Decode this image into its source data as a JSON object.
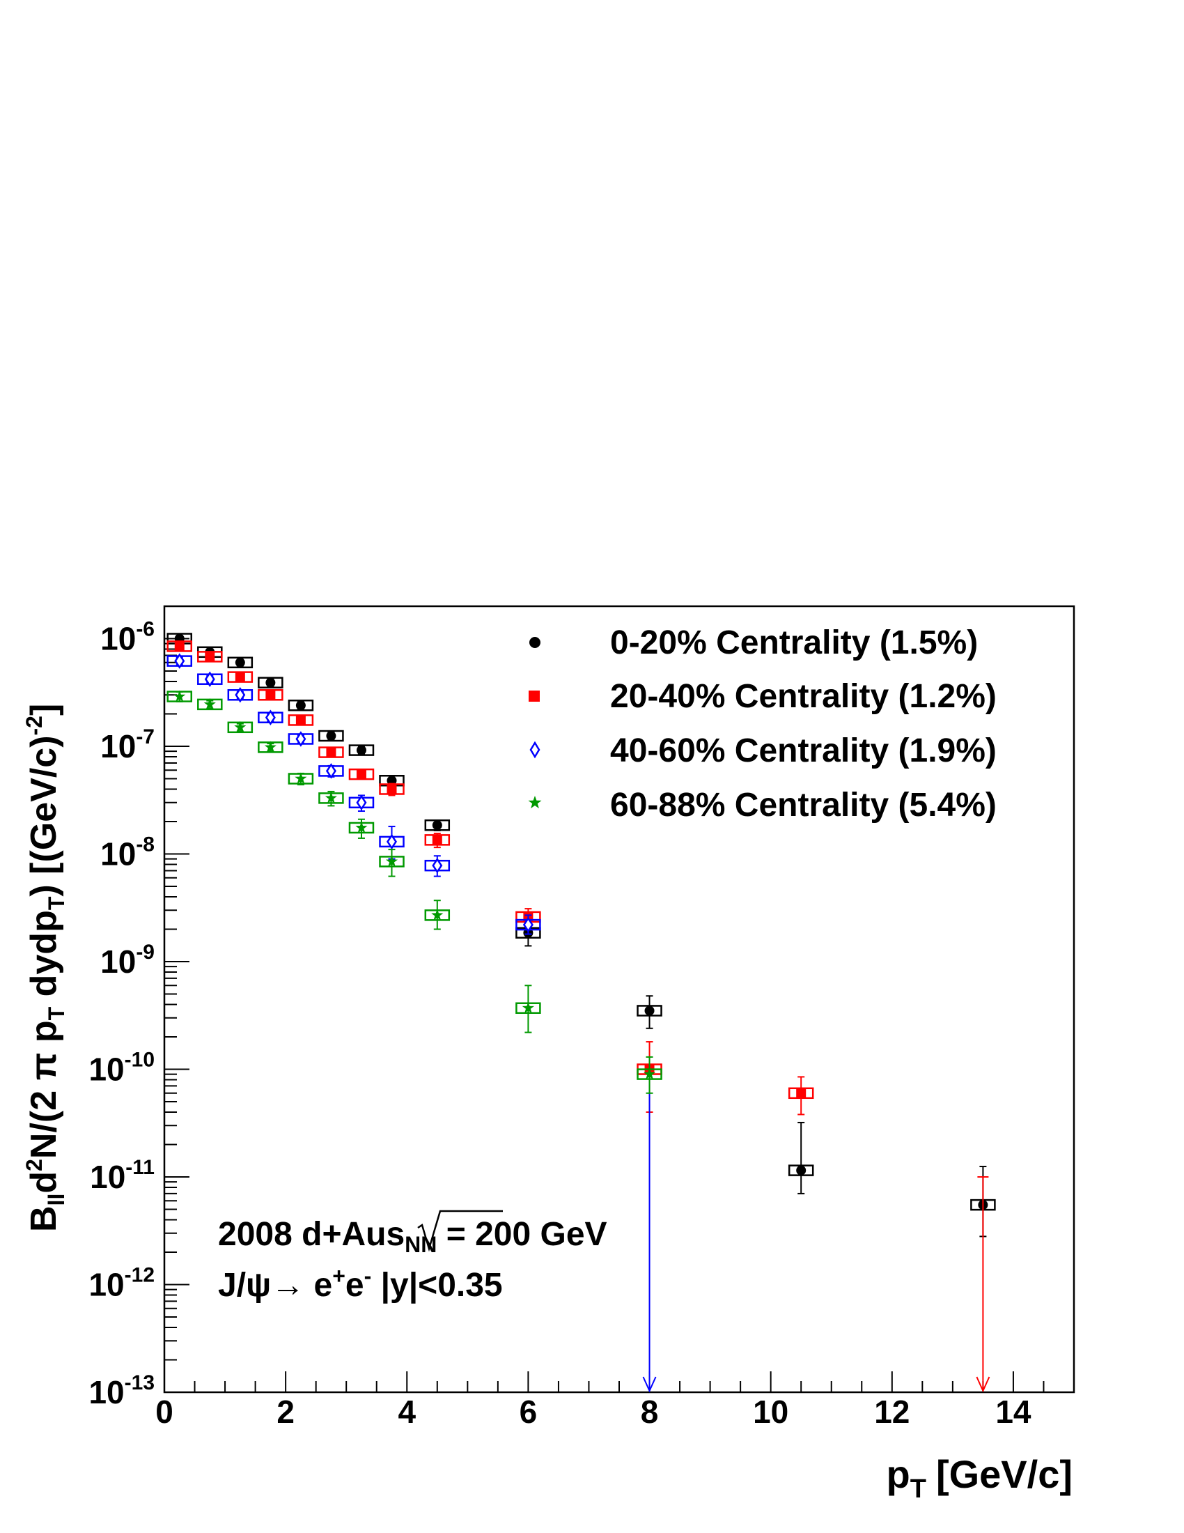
{
  "chart_data": {
    "type": "scatter",
    "title": "",
    "xlabel": "p",
    "xlabel_sub": "T",
    "xlabel_units": "[GeV/c]",
    "ylabel_text": "Bₗₗd²N/(2 π pₜ dydpₜ) [(GeV/c)⁻²]",
    "ylabel_parts": {
      "B": "B",
      "B_sub": "ll",
      "d": "d",
      "d_sup": "2",
      "N_open": "N/(2 π p",
      "pt_sub": "T",
      "mid": " dydp",
      "pt_sub2": "T",
      "close": ") [(GeV/c)",
      "exp": "-2",
      "end": "]"
    },
    "xlim": [
      0,
      15
    ],
    "ylim": [
      1e-13,
      2e-06
    ],
    "yscale": "log",
    "x_ticks": [
      "0",
      "2",
      "4",
      "6",
      "8",
      "10",
      "12",
      "14"
    ],
    "y_ticks": [
      {
        "base": "10",
        "exp": "-6"
      },
      {
        "base": "10",
        "exp": "-7"
      },
      {
        "base": "10",
        "exp": "-8"
      },
      {
        "base": "10",
        "exp": "-9"
      },
      {
        "base": "10",
        "exp": "-10"
      },
      {
        "base": "10",
        "exp": "-11"
      },
      {
        "base": "10",
        "exp": "-12"
      },
      {
        "base": "10",
        "exp": "-13"
      }
    ],
    "legend_position": "top-right",
    "annotation": {
      "line1_a": "2008 d+Au",
      "line1_sqrt_s": "s",
      "line1_sqrt_sub": "NN",
      "line1_b": " = 200 GeV",
      "line2_a": "J/ψ→ e",
      "line2_plus": "+",
      "line2_e": "e",
      "line2_minus": "-",
      "line2_b": "  |y|<0.35"
    },
    "series": [
      {
        "name": "0-20% Centrality (1.5%)",
        "color": "#000000",
        "marker": "circle",
        "points": [
          {
            "x": 0.25,
            "y": 1e-06,
            "lo": 9.3e-07,
            "hi": 1.07e-06
          },
          {
            "x": 0.75,
            "y": 7.5e-07,
            "lo": 7e-07,
            "hi": 8e-07
          },
          {
            "x": 1.25,
            "y": 6e-07,
            "lo": 5.6e-07,
            "hi": 6.4e-07
          },
          {
            "x": 1.75,
            "y": 3.9e-07,
            "lo": 3.6e-07,
            "hi": 4.2e-07
          },
          {
            "x": 2.25,
            "y": 2.4e-07,
            "lo": 2.2e-07,
            "hi": 2.6e-07
          },
          {
            "x": 2.75,
            "y": 1.25e-07,
            "lo": 1.15e-07,
            "hi": 1.35e-07
          },
          {
            "x": 3.25,
            "y": 9.2e-08,
            "lo": 8.5e-08,
            "hi": 9.9e-08
          },
          {
            "x": 3.75,
            "y": 4.8e-08,
            "lo": 4.3e-08,
            "hi": 5.3e-08
          },
          {
            "x": 4.5,
            "y": 1.85e-08,
            "lo": 1.65e-08,
            "hi": 2.05e-08
          },
          {
            "x": 6.0,
            "y": 1.85e-09,
            "lo": 1.4e-09,
            "hi": 2.4e-09
          },
          {
            "x": 8.0,
            "y": 3.5e-10,
            "lo": 2.4e-10,
            "hi": 4.8e-10
          },
          {
            "x": 10.5,
            "y": 1.15e-11,
            "lo": 7e-12,
            "hi": 3.2e-11
          },
          {
            "x": 13.5,
            "y": 5.5e-12,
            "lo": 2.8e-12,
            "hi": 1.25e-11
          }
        ]
      },
      {
        "name": "20-40% Centrality (1.2%)",
        "color": "#ff0000",
        "marker": "square",
        "points": [
          {
            "x": 0.25,
            "y": 8.5e-07,
            "lo": 7.9e-07,
            "hi": 9.1e-07
          },
          {
            "x": 0.75,
            "y": 6.8e-07,
            "lo": 6.3e-07,
            "hi": 7.3e-07
          },
          {
            "x": 1.25,
            "y": 4.4e-07,
            "lo": 4.1e-07,
            "hi": 4.7e-07
          },
          {
            "x": 1.75,
            "y": 3e-07,
            "lo": 2.8e-07,
            "hi": 3.2e-07
          },
          {
            "x": 2.25,
            "y": 1.75e-07,
            "lo": 1.62e-07,
            "hi": 1.88e-07
          },
          {
            "x": 2.75,
            "y": 8.8e-08,
            "lo": 8.1e-08,
            "hi": 9.5e-08
          },
          {
            "x": 3.25,
            "y": 5.5e-08,
            "lo": 5e-08,
            "hi": 6e-08
          },
          {
            "x": 3.75,
            "y": 4e-08,
            "lo": 3.5e-08,
            "hi": 4.5e-08
          },
          {
            "x": 4.5,
            "y": 1.35e-08,
            "lo": 1.15e-08,
            "hi": 1.55e-08
          },
          {
            "x": 6.0,
            "y": 2.6e-09,
            "lo": 2.1e-09,
            "hi": 3.1e-09
          },
          {
            "x": 8.0,
            "y": 1e-10,
            "lo": 4e-11,
            "hi": 1.8e-10
          },
          {
            "x": 10.5,
            "y": 6e-11,
            "lo": 3.8e-11,
            "hi": 8.5e-11
          },
          {
            "x": 13.5,
            "y": 1e-11,
            "arrow": true
          }
        ]
      },
      {
        "name": "40-60% Centrality (1.9%)",
        "color": "#0000ff",
        "marker": "open-diamond",
        "points": [
          {
            "x": 0.25,
            "y": 6.2e-07,
            "lo": 5.7e-07,
            "hi": 6.7e-07
          },
          {
            "x": 0.75,
            "y": 4.2e-07,
            "lo": 3.9e-07,
            "hi": 4.5e-07
          },
          {
            "x": 1.25,
            "y": 3e-07,
            "lo": 2.8e-07,
            "hi": 3.2e-07
          },
          {
            "x": 1.75,
            "y": 1.85e-07,
            "lo": 1.7e-07,
            "hi": 2e-07
          },
          {
            "x": 2.25,
            "y": 1.17e-07,
            "lo": 1.07e-07,
            "hi": 1.27e-07
          },
          {
            "x": 2.75,
            "y": 5.9e-08,
            "lo": 5.2e-08,
            "hi": 6.6e-08
          },
          {
            "x": 3.25,
            "y": 3e-08,
            "lo": 2.5e-08,
            "hi": 3.5e-08
          },
          {
            "x": 3.75,
            "y": 1.3e-08,
            "lo": 9e-09,
            "hi": 1.8e-08
          },
          {
            "x": 4.5,
            "y": 7.8e-09,
            "lo": 6.2e-09,
            "hi": 9.6e-09
          },
          {
            "x": 6.0,
            "y": 2.2e-09,
            "lo": 1.8e-09,
            "hi": 2.7e-09
          },
          {
            "x": 8.0,
            "y": 1e-10,
            "arrow": true
          }
        ]
      },
      {
        "name": "60-88% Centrality (5.4%)",
        "color": "#009900",
        "marker": "star",
        "points": [
          {
            "x": 0.25,
            "y": 2.9e-07,
            "lo": 2.6e-07,
            "hi": 3.2e-07
          },
          {
            "x": 0.75,
            "y": 2.45e-07,
            "lo": 2.25e-07,
            "hi": 2.65e-07
          },
          {
            "x": 1.25,
            "y": 1.5e-07,
            "lo": 1.38e-07,
            "hi": 1.62e-07
          },
          {
            "x": 1.75,
            "y": 9.8e-08,
            "lo": 9e-08,
            "hi": 1.06e-07
          },
          {
            "x": 2.25,
            "y": 5e-08,
            "lo": 4.4e-08,
            "hi": 5.6e-08
          },
          {
            "x": 2.75,
            "y": 3.3e-08,
            "lo": 2.8e-08,
            "hi": 3.8e-08
          },
          {
            "x": 3.25,
            "y": 1.75e-08,
            "lo": 1.4e-08,
            "hi": 2.1e-08
          },
          {
            "x": 3.75,
            "y": 8.5e-09,
            "lo": 6.2e-09,
            "hi": 1.1e-08
          },
          {
            "x": 4.5,
            "y": 2.7e-09,
            "lo": 2e-09,
            "hi": 3.7e-09
          },
          {
            "x": 6.0,
            "y": 3.7e-10,
            "lo": 2.2e-10,
            "hi": 6e-10
          },
          {
            "x": 8.0,
            "y": 9e-11,
            "lo": 6e-11,
            "hi": 1.3e-10
          }
        ]
      }
    ]
  }
}
